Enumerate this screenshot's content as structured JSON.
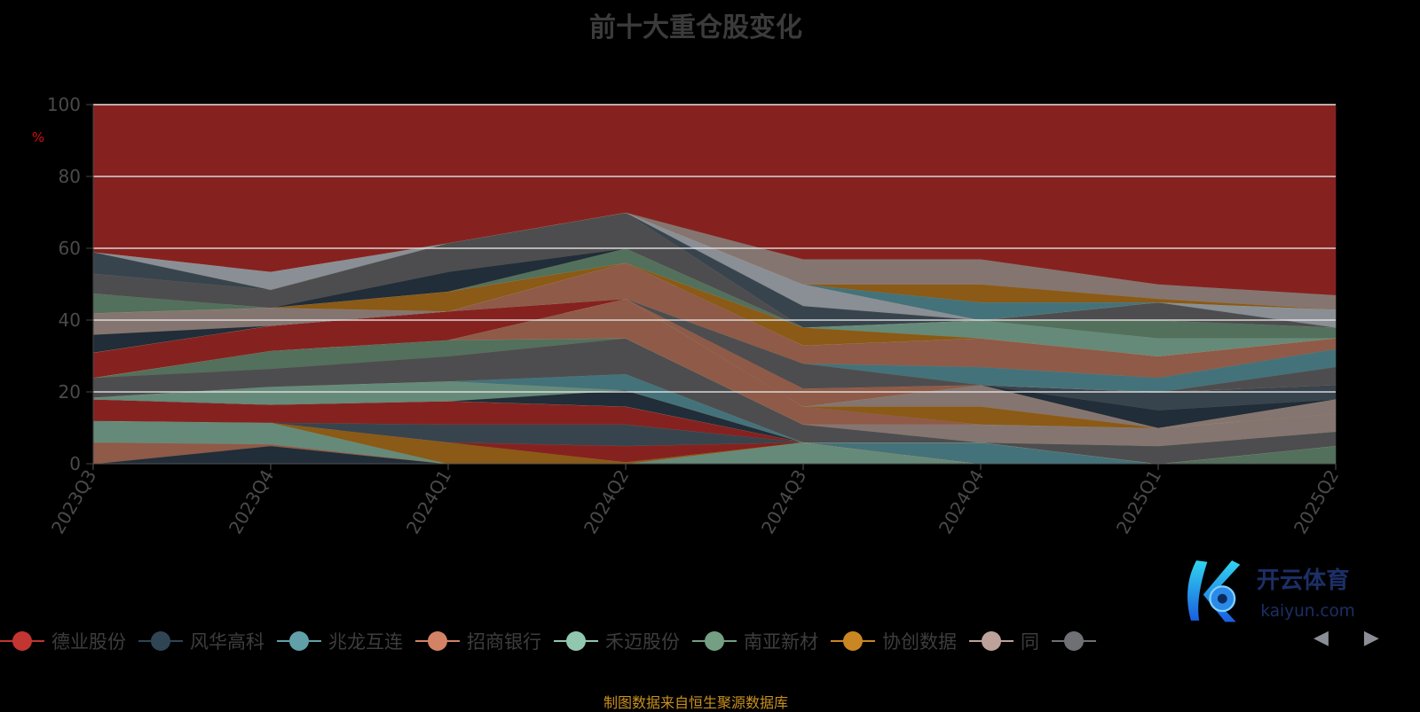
{
  "title": "前十大重仓股变化",
  "footer": "制图数据来自恒生聚源数据库",
  "watermark": {
    "name": "开云体育",
    "domain": "kaiyun.com"
  },
  "legend": [
    {
      "name": "德业股份",
      "color": "#c23531"
    },
    {
      "name": "风华高科",
      "color": "#2f4554"
    },
    {
      "name": "兆龙互连",
      "color": "#61a0a8"
    },
    {
      "name": "招商银行",
      "color": "#d48265"
    },
    {
      "name": "禾迈股份",
      "color": "#91c7ae"
    },
    {
      "name": "南亚新材",
      "color": "#749f83"
    },
    {
      "name": "协创数据",
      "color": "#ca8622"
    },
    {
      "name": "同",
      "color": "#bda29a"
    },
    {
      "name": "",
      "color": "#6e7074"
    }
  ],
  "chart_data": {
    "type": "area",
    "stacked": true,
    "title": "前十大重仓股变化",
    "ylabel": "%",
    "ylim": [
      0,
      100
    ],
    "yticks": [
      0,
      20,
      40,
      60,
      80,
      100
    ],
    "categories": [
      "2023Q3",
      "2023Q4",
      "2024Q1",
      "2024Q2",
      "2024Q3",
      "2024Q4",
      "2025Q1",
      "2025Q2"
    ],
    "grid": true,
    "legend_position": "bottom",
    "fill_colors": {
      "red": "#852220",
      "navy": "#212d38",
      "teal": "#44727a",
      "orange": "#8f5a48",
      "mint": "#658a79",
      "green": "#52705c",
      "gold": "#8a5a16",
      "pinkgray": "#857570",
      "gray": "#4d4d4f",
      "slate": "#38444d",
      "lightgray": "#8a8f96"
    },
    "series": [
      {
        "color": "navy",
        "values": [
          0,
          5,
          0,
          0,
          0,
          0,
          0,
          0
        ]
      },
      {
        "color": "orange",
        "values": [
          6,
          0.5,
          0,
          0,
          0,
          0,
          0,
          0
        ]
      },
      {
        "color": "mint",
        "values": [
          6,
          6,
          0,
          0,
          6,
          0,
          0,
          0
        ]
      },
      {
        "color": "gold",
        "values": [
          0,
          0,
          6,
          0.5,
          0,
          0,
          0,
          0
        ]
      },
      {
        "color": "red",
        "values": [
          0,
          0,
          0,
          4.5,
          0,
          0,
          0,
          0
        ]
      },
      {
        "color": "slate",
        "values": [
          0,
          0,
          5,
          6,
          0,
          0,
          0,
          0
        ]
      },
      {
        "color": "red",
        "values": [
          6,
          5,
          6.5,
          5,
          0,
          0,
          0,
          0
        ]
      },
      {
        "color": "teal",
        "values": [
          0,
          0,
          0,
          0,
          0,
          6,
          0,
          0
        ]
      },
      {
        "color": "green",
        "values": [
          0,
          0,
          0,
          0,
          0,
          0,
          0,
          5
        ]
      },
      {
        "color": "navy",
        "values": [
          0,
          0,
          0,
          4.5,
          0,
          0,
          0,
          0
        ]
      },
      {
        "color": "mint",
        "values": [
          0.5,
          5,
          5.5,
          0,
          0,
          0,
          0,
          0
        ]
      },
      {
        "color": "teal",
        "values": [
          0,
          0,
          0,
          4.5,
          0,
          0,
          0,
          0
        ]
      },
      {
        "color": "gray",
        "values": [
          5.5,
          5,
          7,
          10,
          5,
          0,
          5,
          4
        ]
      },
      {
        "color": "green",
        "values": [
          0,
          5,
          4.5,
          0,
          0,
          0,
          0,
          0
        ]
      },
      {
        "color": "pinkgray",
        "values": [
          0,
          0,
          0,
          0,
          0,
          5,
          5,
          5
        ]
      },
      {
        "color": "orange",
        "values": [
          0,
          0,
          0,
          11,
          5,
          0,
          0,
          0
        ]
      },
      {
        "color": "gold",
        "values": [
          0,
          0,
          0,
          0,
          0,
          5,
          0,
          0
        ]
      },
      {
        "color": "pinkgray",
        "values": [
          0,
          0,
          0,
          0,
          0,
          6,
          0,
          4
        ]
      },
      {
        "color": "navy",
        "values": [
          0,
          0,
          0,
          0,
          0,
          0,
          5,
          0
        ]
      },
      {
        "color": "slate",
        "values": [
          0,
          0,
          0,
          0,
          0,
          0,
          5,
          4
        ]
      },
      {
        "color": "orange",
        "values": [
          0,
          0,
          0,
          0,
          5,
          0,
          0,
          0
        ]
      },
      {
        "color": "red",
        "values": [
          7,
          7,
          8,
          0,
          0,
          0,
          0,
          0
        ]
      },
      {
        "color": "gray",
        "values": [
          0,
          0,
          0,
          0,
          7,
          0,
          0,
          5
        ]
      },
      {
        "color": "teal",
        "values": [
          0,
          0,
          0,
          0,
          0,
          5,
          4,
          5
        ]
      },
      {
        "color": "orange",
        "values": [
          0,
          0,
          0,
          10,
          5,
          8,
          6,
          3
        ]
      },
      {
        "color": "navy",
        "values": [
          5,
          0,
          0,
          0,
          0,
          0,
          0,
          0
        ]
      },
      {
        "color": "pinkgray",
        "values": [
          6,
          5,
          0,
          0,
          0,
          0,
          0,
          0
        ]
      },
      {
        "color": "gold",
        "values": [
          0,
          0,
          5.5,
          0,
          5,
          0,
          0,
          0
        ]
      },
      {
        "color": "mint",
        "values": [
          0,
          0,
          0,
          0,
          0,
          5,
          5,
          0
        ]
      },
      {
        "color": "green",
        "values": [
          5.5,
          0,
          0,
          4,
          0,
          0,
          5,
          3
        ]
      },
      {
        "color": "navy",
        "values": [
          0,
          0,
          5.5,
          0,
          0,
          0,
          0,
          0
        ]
      },
      {
        "color": "gray",
        "values": [
          5.5,
          5,
          8,
          10,
          0,
          0,
          5,
          0
        ]
      },
      {
        "color": "slate",
        "values": [
          6,
          0,
          0,
          0,
          6,
          0,
          0,
          0
        ]
      },
      {
        "color": "lightgray",
        "values": [
          0,
          5,
          0,
          0,
          6,
          0,
          0,
          5
        ]
      },
      {
        "color": "teal",
        "values": [
          0,
          0,
          0,
          0,
          0,
          5,
          0,
          0
        ]
      },
      {
        "color": "gold",
        "values": [
          0,
          0,
          0,
          0,
          0,
          5,
          1,
          0
        ]
      },
      {
        "color": "pinkgray",
        "values": [
          0,
          0,
          0,
          0,
          7,
          7,
          4,
          4
        ]
      },
      {
        "color": "red",
        "values": [
          41,
          46.5,
          38.5,
          30,
          43,
          43,
          50,
          53
        ]
      }
    ]
  }
}
